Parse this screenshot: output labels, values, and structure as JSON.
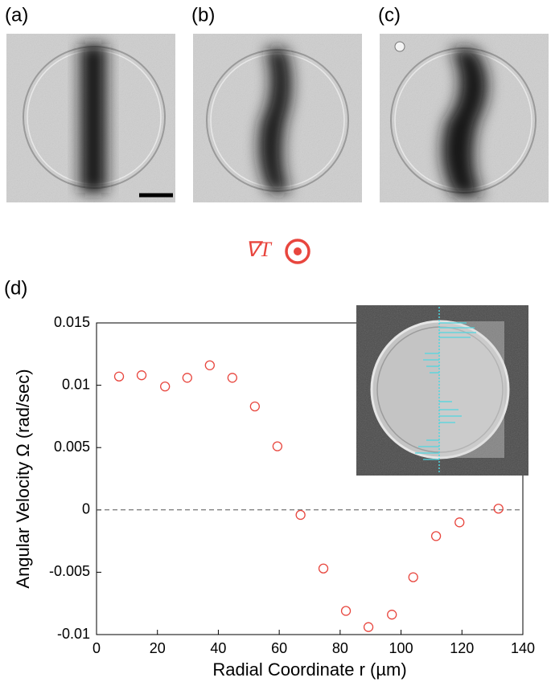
{
  "panels": {
    "a": "(a)",
    "b": "(b)",
    "c": "(c)",
    "d": "(d)"
  },
  "gradient_label": "∇T",
  "chart_data": {
    "type": "scatter",
    "xlabel": "Radial Coordinate r (µm)",
    "ylabel": "Angular Velocity Ω (rad/sec)",
    "x": [
      7.4,
      14.8,
      22.5,
      29.8,
      37.2,
      44.6,
      52,
      59.4,
      67,
      74.5,
      81.9,
      89.3,
      97,
      104,
      111.5,
      119.2,
      132
    ],
    "series": [
      {
        "color": "#e8463e",
        "values": [
          0.0107,
          0.0108,
          0.0099,
          0.0106,
          0.0116,
          0.0106,
          0.0083,
          0.0051,
          -0.0004,
          -0.0047,
          -0.0081,
          -0.0094,
          -0.0084,
          -0.0054,
          -0.0021,
          -0.001,
          0.0001
        ]
      }
    ],
    "xlim": [
      0,
      140
    ],
    "xticks": [
      0,
      20,
      40,
      60,
      80,
      100,
      120,
      140
    ],
    "ylim": [
      -0.01,
      0.015
    ],
    "yticks": [
      -0.01,
      -0.005,
      0,
      0.005,
      0.01,
      0.015
    ],
    "zero_line": true,
    "marker": "open-circle"
  }
}
